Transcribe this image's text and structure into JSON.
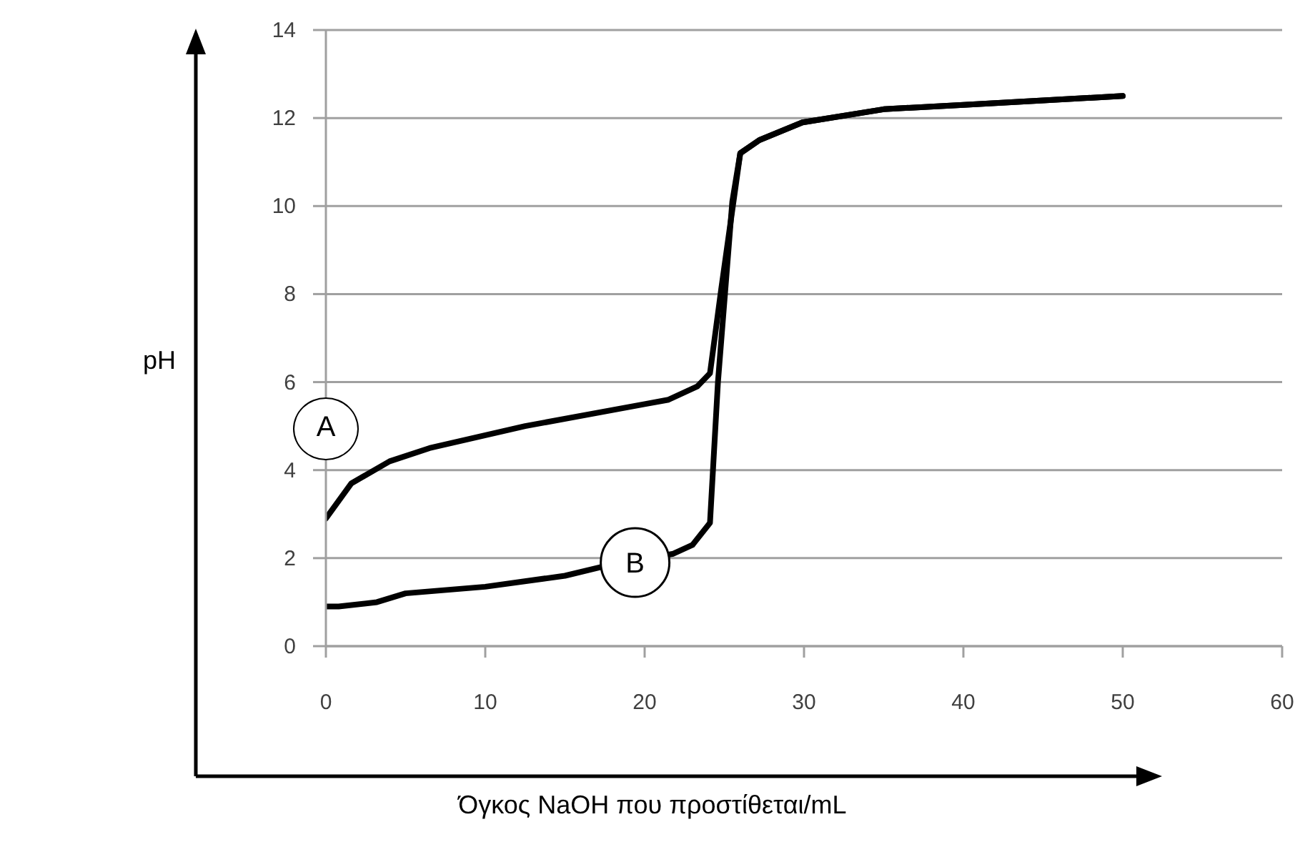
{
  "chart_data": {
    "type": "line",
    "xlabel": "Όγκος NaOH που προστίθεται/mL",
    "ylabel": "pH",
    "xlim": [
      0,
      60
    ],
    "xticks": [
      0,
      10,
      20,
      30,
      40,
      50,
      60
    ],
    "ylim": [
      0,
      14
    ],
    "yticks": [
      0,
      2,
      4,
      6,
      8,
      10,
      12,
      14
    ],
    "grid": "y",
    "marker": "none",
    "line_style": "solid",
    "series": [
      {
        "color": "#000000",
        "x": [
          0,
          1.6,
          4,
          6.5,
          12.5,
          20,
          21.5,
          23.3,
          24.1,
          24.8,
          26,
          27.2,
          29.9,
          35,
          40,
          45,
          50
        ],
        "values": [
          2.9,
          3.7,
          4.2,
          4.5,
          5.0,
          5.5,
          5.6,
          5.9,
          6.2,
          8.1,
          11.2,
          11.5,
          11.9,
          12.2,
          12.3,
          12.4,
          12.5
        ]
      },
      {
        "color": "#000000",
        "x": [
          0,
          0.8,
          3.2,
          5,
          10,
          15,
          17.3,
          21.8,
          23,
          24.1,
          24.6,
          25.5,
          26,
          27.2,
          29.9,
          35,
          40,
          45,
          50
        ],
        "values": [
          0.9,
          0.9,
          1.0,
          1.2,
          1.35,
          1.6,
          1.8,
          2.1,
          2.3,
          2.8,
          6.0,
          10.1,
          11.2,
          11.5,
          11.9,
          12.2,
          12.3,
          12.4,
          12.5
        ]
      }
    ],
    "annotations": [
      "A",
      {
        "text": "B",
        "x": 19.4,
        "y": 1.9
      }
    ]
  }
}
